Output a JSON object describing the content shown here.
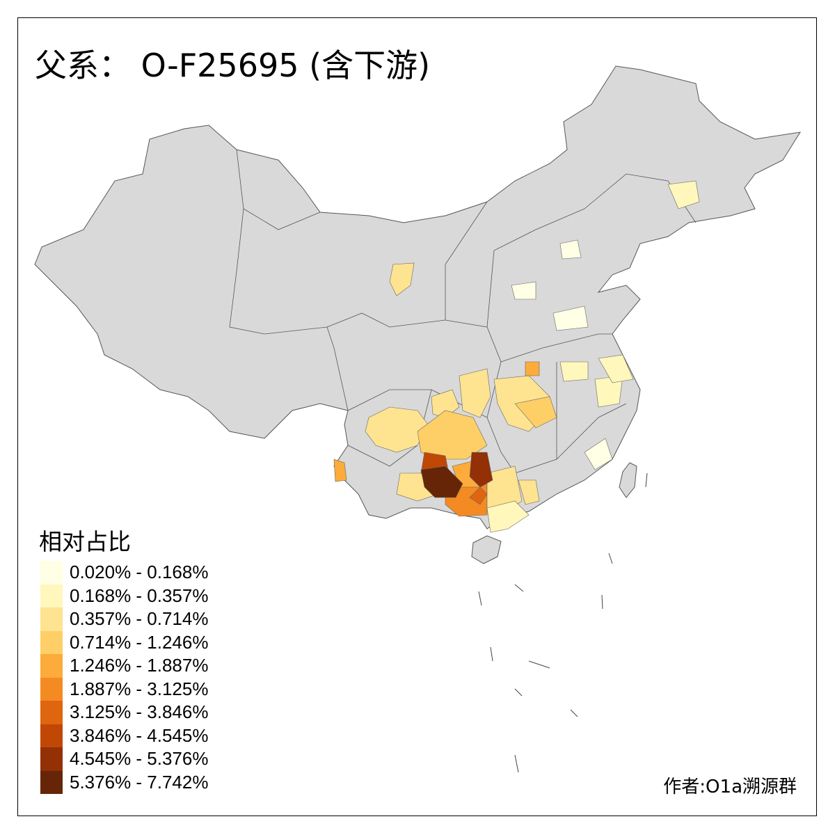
{
  "title": "父系： O-F25695 (含下游)",
  "legend": {
    "title": "相对占比",
    "classes": [
      {
        "label": "0.020% - 0.168%",
        "color": "#FFFFE5"
      },
      {
        "label": "0.168% - 0.357%",
        "color": "#FFF7BC"
      },
      {
        "label": "0.357% - 0.714%",
        "color": "#FEE391"
      },
      {
        "label": "0.714% - 1.246%",
        "color": "#FECF66"
      },
      {
        "label": "1.246% - 1.887%",
        "color": "#FDAB3A"
      },
      {
        "label": "1.887% - 3.125%",
        "color": "#F48A22"
      },
      {
        "label": "3.125% - 3.846%",
        "color": "#E0650F"
      },
      {
        "label": "3.846% - 4.545%",
        "color": "#C14705"
      },
      {
        "label": "4.545% - 5.376%",
        "color": "#933006"
      },
      {
        "label": "5.376% - 7.742%",
        "color": "#662506"
      }
    ]
  },
  "colors": {
    "no_data": "#D9D9D9",
    "border": "#555555"
  },
  "author": "作者:O1a溯源群"
}
